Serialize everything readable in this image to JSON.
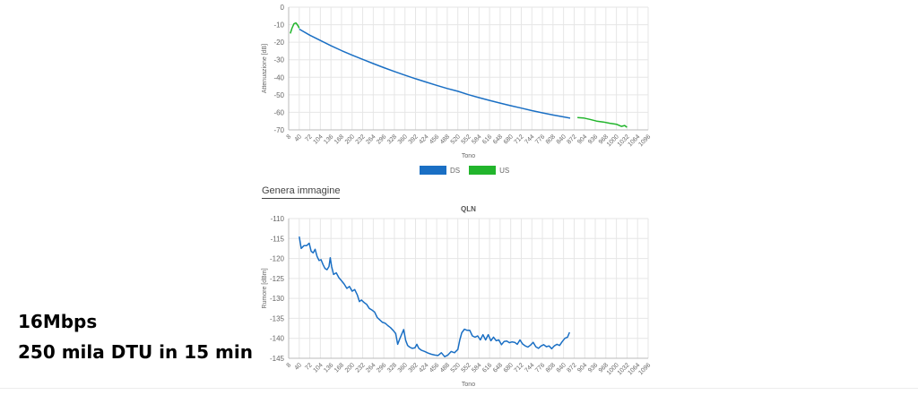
{
  "overlay": {
    "line1": "16Mbps",
    "line2": "250 mila DTU in 15 min"
  },
  "generate_image_label": "Genera immagine",
  "legend": [
    {
      "label": "DS",
      "color": "#1a6fc4"
    },
    {
      "label": "US",
      "color": "#22b52c"
    }
  ],
  "chart_data": [
    {
      "type": "line",
      "title": "",
      "xlabel": "Tono",
      "ylabel": "Attenuazione [dB]",
      "xlim": [
        8,
        1096
      ],
      "ylim": [
        -70,
        0
      ],
      "x_ticks": [
        8,
        40,
        72,
        104,
        136,
        168,
        200,
        232,
        264,
        296,
        328,
        360,
        392,
        424,
        456,
        488,
        520,
        552,
        584,
        616,
        648,
        680,
        712,
        744,
        776,
        808,
        840,
        872,
        904,
        936,
        968,
        1000,
        1032,
        1064,
        1096
      ],
      "y_ticks": [
        0,
        -10,
        -20,
        -30,
        -40,
        -50,
        -60,
        -70
      ],
      "grid": true,
      "legend_position": "bottom-center",
      "series": [
        {
          "name": "US",
          "color": "#22b52c",
          "segments": [
            [
              [
                13,
                -15
              ],
              [
                18,
                -12
              ],
              [
                24,
                -9.5
              ],
              [
                30,
                -9
              ],
              [
                36,
                -10.5
              ],
              [
                40,
                -12
              ]
            ],
            [
              [
                882,
                -63
              ],
              [
                900,
                -63.2
              ],
              [
                920,
                -64
              ],
              [
                940,
                -65
              ],
              [
                960,
                -65.5
              ],
              [
                980,
                -66.2
              ],
              [
                1000,
                -66.8
              ],
              [
                1015,
                -68
              ],
              [
                1025,
                -67.5
              ],
              [
                1032,
                -68.5
              ]
            ]
          ]
        },
        {
          "name": "DS",
          "color": "#1a6fc4",
          "segments": [
            [
              [
                40,
                -12.5
              ],
              [
                72,
                -16
              ],
              [
                104,
                -19
              ],
              [
                136,
                -22
              ],
              [
                168,
                -24.8
              ],
              [
                200,
                -27.4
              ],
              [
                232,
                -29.8
              ],
              [
                264,
                -32.2
              ],
              [
                296,
                -34.5
              ],
              [
                328,
                -36.7
              ],
              [
                360,
                -38.8
              ],
              [
                392,
                -40.8
              ],
              [
                424,
                -42.7
              ],
              [
                456,
                -44.6
              ],
              [
                488,
                -46.4
              ],
              [
                520,
                -48
              ],
              [
                552,
                -49.9
              ],
              [
                584,
                -51.6
              ],
              [
                616,
                -53.2
              ],
              [
                648,
                -54.7
              ],
              [
                680,
                -56.2
              ],
              [
                712,
                -57.6
              ],
              [
                744,
                -59
              ],
              [
                776,
                -60.3
              ],
              [
                808,
                -61.5
              ],
              [
                840,
                -62.6
              ],
              [
                860,
                -63.3
              ]
            ]
          ]
        }
      ]
    },
    {
      "type": "line",
      "title": "QLN",
      "xlabel": "Tono",
      "ylabel": "Rumore [dBm]",
      "xlim": [
        8,
        1096
      ],
      "ylim": [
        -145,
        -110
      ],
      "x_ticks": [
        8,
        40,
        72,
        104,
        136,
        168,
        200,
        232,
        264,
        296,
        328,
        360,
        392,
        424,
        456,
        488,
        520,
        552,
        584,
        616,
        648,
        680,
        712,
        744,
        776,
        808,
        840,
        872,
        904,
        936,
        968,
        1000,
        1032,
        1064,
        1096
      ],
      "y_ticks": [
        -110,
        -115,
        -120,
        -125,
        -130,
        -135,
        -140,
        -145
      ],
      "grid": true,
      "series": [
        {
          "color": "#1a6fc4",
          "segments": [
            [
              [
                40,
                -114.5
              ],
              [
                46,
                -117.5
              ],
              [
                54,
                -116.8
              ],
              [
                62,
                -116.8
              ],
              [
                70,
                -116.2
              ],
              [
                76,
                -118.2
              ],
              [
                82,
                -118.6
              ],
              [
                88,
                -117.7
              ],
              [
                94,
                -119.5
              ],
              [
                100,
                -120.5
              ],
              [
                106,
                -120.3
              ],
              [
                112,
                -121.5
              ],
              [
                118,
                -122.5
              ],
              [
                124,
                -122.8
              ],
              [
                130,
                -122
              ],
              [
                134,
                -119.8
              ],
              [
                138,
                -122
              ],
              [
                144,
                -124
              ],
              [
                152,
                -123.6
              ],
              [
                160,
                -124.8
              ],
              [
                168,
                -125.6
              ],
              [
                176,
                -126.4
              ],
              [
                184,
                -127.5
              ],
              [
                192,
                -127
              ],
              [
                200,
                -128.2
              ],
              [
                208,
                -127.8
              ],
              [
                216,
                -129.2
              ],
              [
                222,
                -130.8
              ],
              [
                228,
                -130.4
              ],
              [
                236,
                -131
              ],
              [
                244,
                -131.5
              ],
              [
                252,
                -132.5
              ],
              [
                260,
                -132.9
              ],
              [
                268,
                -133.4
              ],
              [
                276,
                -134.8
              ],
              [
                284,
                -135.4
              ],
              [
                292,
                -136
              ],
              [
                300,
                -136.2
              ],
              [
                308,
                -136.8
              ],
              [
                316,
                -137.3
              ],
              [
                324,
                -138
              ],
              [
                332,
                -138.8
              ],
              [
                338,
                -141.5
              ],
              [
                344,
                -140.2
              ],
              [
                350,
                -139
              ],
              [
                356,
                -137.8
              ],
              [
                362,
                -140.5
              ],
              [
                368,
                -141.8
              ],
              [
                374,
                -142.2
              ],
              [
                382,
                -142.5
              ],
              [
                390,
                -142.4
              ],
              [
                396,
                -141.5
              ],
              [
                402,
                -142.5
              ],
              [
                410,
                -143
              ],
              [
                420,
                -143.3
              ],
              [
                430,
                -143.7
              ],
              [
                440,
                -144
              ],
              [
                450,
                -144.2
              ],
              [
                460,
                -144.3
              ],
              [
                470,
                -143.6
              ],
              [
                480,
                -144.6
              ],
              [
                490,
                -144.2
              ],
              [
                500,
                -143.3
              ],
              [
                510,
                -143.6
              ],
              [
                520,
                -142.8
              ],
              [
                526,
                -140.4
              ],
              [
                532,
                -138.6
              ],
              [
                540,
                -137.7
              ],
              [
                548,
                -138
              ],
              [
                556,
                -138
              ],
              [
                564,
                -139.4
              ],
              [
                572,
                -139.7
              ],
              [
                580,
                -139.4
              ],
              [
                588,
                -140.4
              ],
              [
                596,
                -139.1
              ],
              [
                604,
                -140.4
              ],
              [
                612,
                -139.1
              ],
              [
                620,
                -140.6
              ],
              [
                628,
                -139.7
              ],
              [
                636,
                -140.6
              ],
              [
                644,
                -140.4
              ],
              [
                652,
                -141.6
              ],
              [
                660,
                -140.8
              ],
              [
                668,
                -140.7
              ],
              [
                676,
                -141.1
              ],
              [
                684,
                -140.9
              ],
              [
                692,
                -141
              ],
              [
                700,
                -141.5
              ],
              [
                708,
                -140.4
              ],
              [
                716,
                -141.4
              ],
              [
                724,
                -141.9
              ],
              [
                732,
                -142.2
              ],
              [
                740,
                -141.7
              ],
              [
                748,
                -141
              ],
              [
                756,
                -142.1
              ],
              [
                764,
                -142.5
              ],
              [
                772,
                -141.9
              ],
              [
                780,
                -141.6
              ],
              [
                788,
                -142.1
              ],
              [
                796,
                -141.9
              ],
              [
                804,
                -142.6
              ],
              [
                812,
                -141.9
              ],
              [
                820,
                -141.5
              ],
              [
                828,
                -141.8
              ],
              [
                836,
                -140.8
              ],
              [
                844,
                -140
              ],
              [
                852,
                -139.7
              ],
              [
                858,
                -138.5
              ]
            ]
          ]
        }
      ]
    }
  ]
}
